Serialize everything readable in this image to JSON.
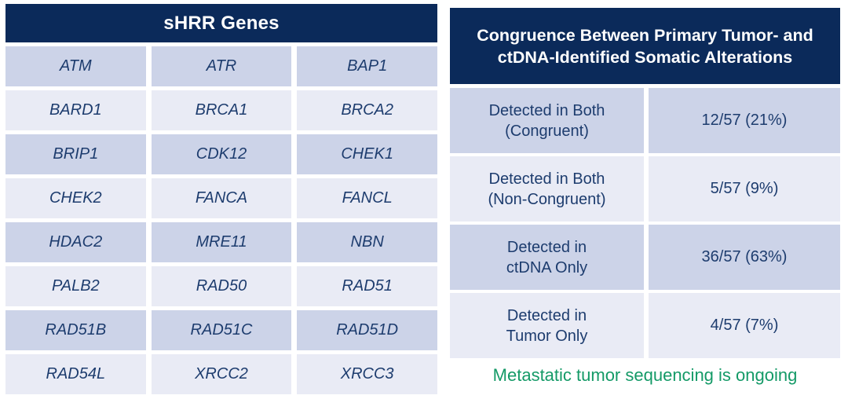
{
  "left_table": {
    "title": "sHRR Genes",
    "genes": [
      [
        "ATM",
        "ATR",
        "BAP1"
      ],
      [
        "BARD1",
        "BRCA1",
        "BRCA2"
      ],
      [
        "BRIP1",
        "CDK12",
        "CHEK1"
      ],
      [
        "CHEK2",
        "FANCA",
        "FANCL"
      ],
      [
        "HDAC2",
        "MRE11",
        "NBN"
      ],
      [
        "PALB2",
        "RAD50",
        "RAD51"
      ],
      [
        "RAD51B",
        "RAD51C",
        "RAD51D"
      ],
      [
        "RAD54L",
        "XRCC2",
        "XRCC3"
      ]
    ]
  },
  "right_table": {
    "title": "Congruence Between Primary Tumor- and ctDNA-Identified Somatic Alterations",
    "rows": [
      {
        "label": "Detected in Both\n(Congruent)",
        "value": "12/57 (21%)"
      },
      {
        "label": "Detected in Both\n(Non-Congruent)",
        "value": "5/57 (9%)"
      },
      {
        "label": "Detected in\nctDNA Only",
        "value": "36/57 (63%)"
      },
      {
        "label": "Detected in\nTumor Only",
        "value": "4/57 (7%)"
      }
    ],
    "footnote": "Metastatic tumor sequencing is ongoing"
  },
  "colors": {
    "header_navy": "#0b2a5a",
    "row_dark": "#ccd3e8",
    "row_light": "#e9ebf5",
    "text_navy": "#1d3c6e",
    "footnote_green": "#149a67"
  }
}
